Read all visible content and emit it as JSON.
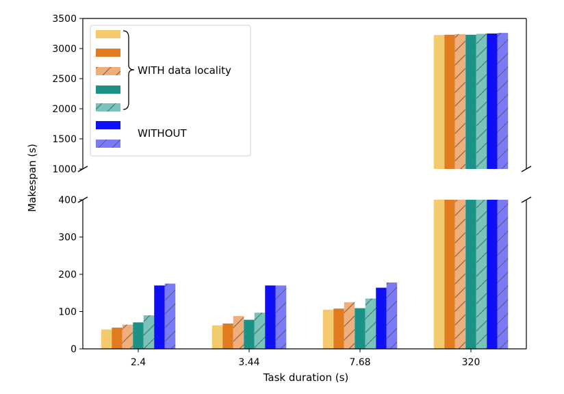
{
  "chart_data": {
    "type": "bar",
    "xlabel": "Task duration (s)",
    "ylabel": "Makespan (s)",
    "categories": [
      "2.4",
      "3.44",
      "7.68",
      "320"
    ],
    "broken_axis": {
      "upper_ylim": [
        1000,
        3500
      ],
      "lower_ylim": [
        0,
        400
      ],
      "upper_ticks": [
        "1000",
        "1500",
        "2000",
        "2500",
        "3000",
        "3500"
      ],
      "lower_ticks": [
        "0",
        "100",
        "200",
        "300",
        "400"
      ]
    },
    "series": [
      {
        "color": "#f3cb6e",
        "hatch": false,
        "values": [
          52,
          63,
          105,
          3225
        ]
      },
      {
        "color": "#e07b1f",
        "hatch": false,
        "values": [
          57,
          68,
          108,
          3230
        ]
      },
      {
        "color": "#efae7a",
        "hatch": true,
        "values": [
          65,
          88,
          125,
          3240
        ]
      },
      {
        "color": "#1c9186",
        "hatch": false,
        "values": [
          71,
          78,
          109,
          3230
        ]
      },
      {
        "color": "#78c4ba",
        "hatch": true,
        "values": [
          90,
          97,
          135,
          3245
        ]
      },
      {
        "color": "#0f0ff5",
        "hatch": false,
        "values": [
          170,
          170,
          164,
          3250
        ]
      },
      {
        "color": "#7b7bf7",
        "hatch": true,
        "values": [
          175,
          170,
          178,
          3260
        ]
      }
    ],
    "legend": {
      "placement": "top-left",
      "group_with": "WITH data locality",
      "group_without": "WITHOUT"
    }
  }
}
